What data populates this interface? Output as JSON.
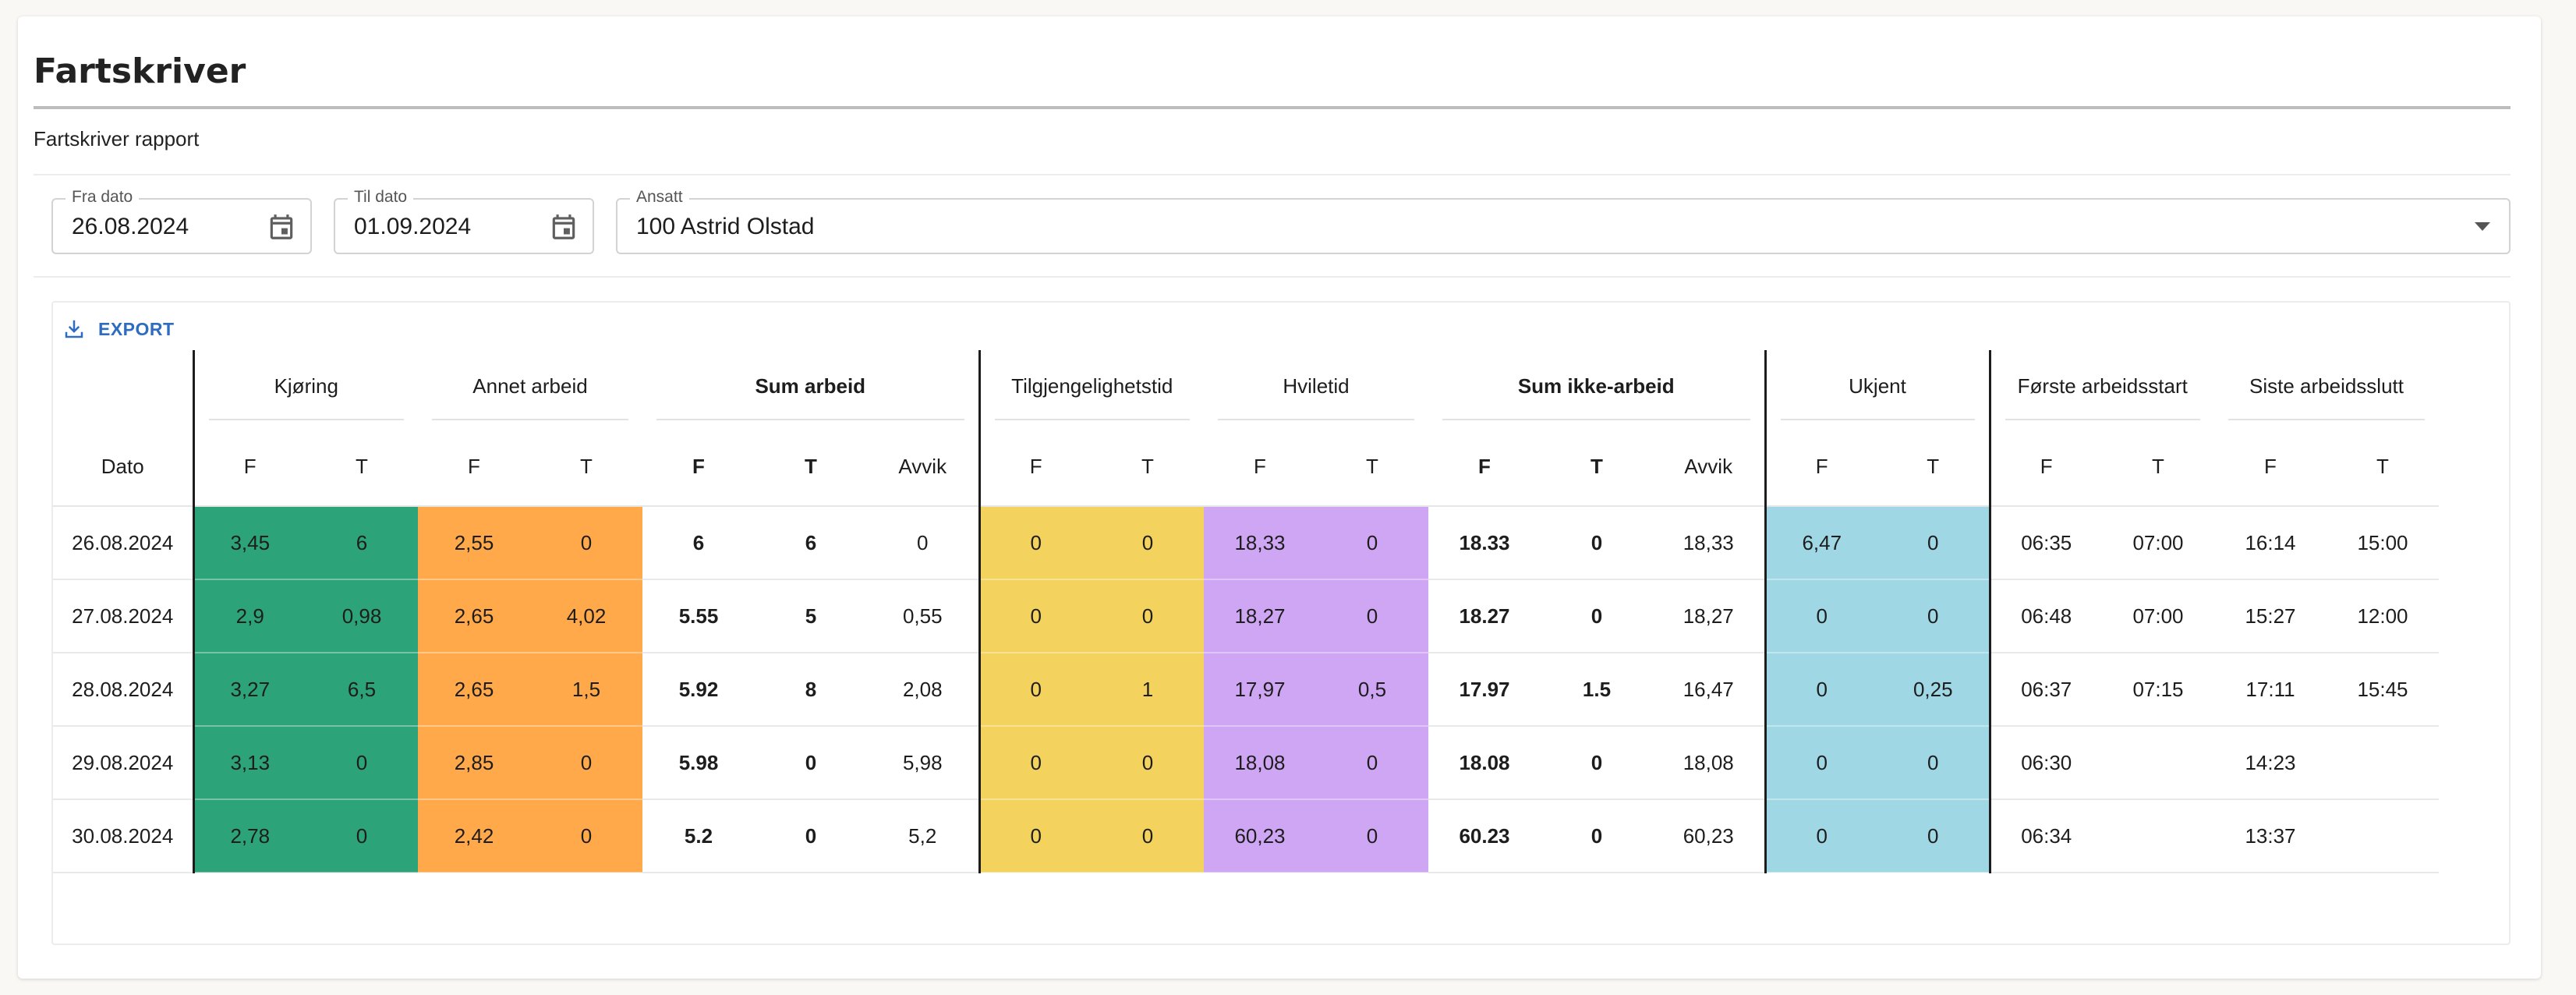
{
  "header": {
    "title": "Fartskriver",
    "subtitle": "Fartskriver rapport"
  },
  "filters": {
    "from": {
      "label": "Fra dato",
      "value": "26.08.2024",
      "icon": "calendar-icon"
    },
    "to": {
      "label": "Til dato",
      "value": "01.09.2024",
      "icon": "calendar-icon"
    },
    "employee": {
      "label": "Ansatt",
      "value": "100 Astrid Olstad",
      "icon": "chevron-down-icon"
    }
  },
  "toolbar": {
    "export_label": "EXPORT",
    "export_icon": "download-icon"
  },
  "table": {
    "groups": {
      "kjoring": "Kjøring",
      "annet": "Annet arbeid",
      "sum_arbeid": "Sum arbeid",
      "tilgj": "Tilgjengelighetstid",
      "hvile": "Hviletid",
      "sum_ikke": "Sum ikke-arbeid",
      "ukjent": "Ukjent",
      "forste": "Første arbeidsstart",
      "siste": "Siste arbeidsslutt"
    },
    "sub": {
      "dato": "Dato",
      "f": "F",
      "t": "T",
      "avvik": "Avvik"
    },
    "colors": {
      "kjoring": "#2da37a",
      "annet": "#ffa94a",
      "tilgj": "#f3d25e",
      "hvile": "#cfa6f4",
      "ukjent": "#9fd7e4"
    },
    "rows": [
      [
        "26.08.2024",
        "3,45",
        "6",
        "2,55",
        "0",
        "6",
        "6",
        "0",
        "0",
        "0",
        "18,33",
        "0",
        "18.33",
        "0",
        "18,33",
        "6,47",
        "0",
        "06:35",
        "07:00",
        "16:14",
        "15:00"
      ],
      [
        "27.08.2024",
        "2,9",
        "0,98",
        "2,65",
        "4,02",
        "5.55",
        "5",
        "0,55",
        "0",
        "0",
        "18,27",
        "0",
        "18.27",
        "0",
        "18,27",
        "0",
        "0",
        "06:48",
        "07:00",
        "15:27",
        "12:00"
      ],
      [
        "28.08.2024",
        "3,27",
        "6,5",
        "2,65",
        "1,5",
        "5.92",
        "8",
        "2,08",
        "0",
        "1",
        "17,97",
        "0,5",
        "17.97",
        "1.5",
        "16,47",
        "0",
        "0,25",
        "06:37",
        "07:15",
        "17:11",
        "15:45"
      ],
      [
        "29.08.2024",
        "3,13",
        "0",
        "2,85",
        "0",
        "5.98",
        "0",
        "5,98",
        "0",
        "0",
        "18,08",
        "0",
        "18.08",
        "0",
        "18,08",
        "0",
        "0",
        "06:30",
        "",
        "14:23",
        ""
      ],
      [
        "30.08.2024",
        "2,78",
        "0",
        "2,42",
        "0",
        "5.2",
        "0",
        "5,2",
        "0",
        "0",
        "60,23",
        "0",
        "60.23",
        "0",
        "60,23",
        "0",
        "0",
        "06:34",
        "",
        "13:37",
        ""
      ]
    ]
  }
}
